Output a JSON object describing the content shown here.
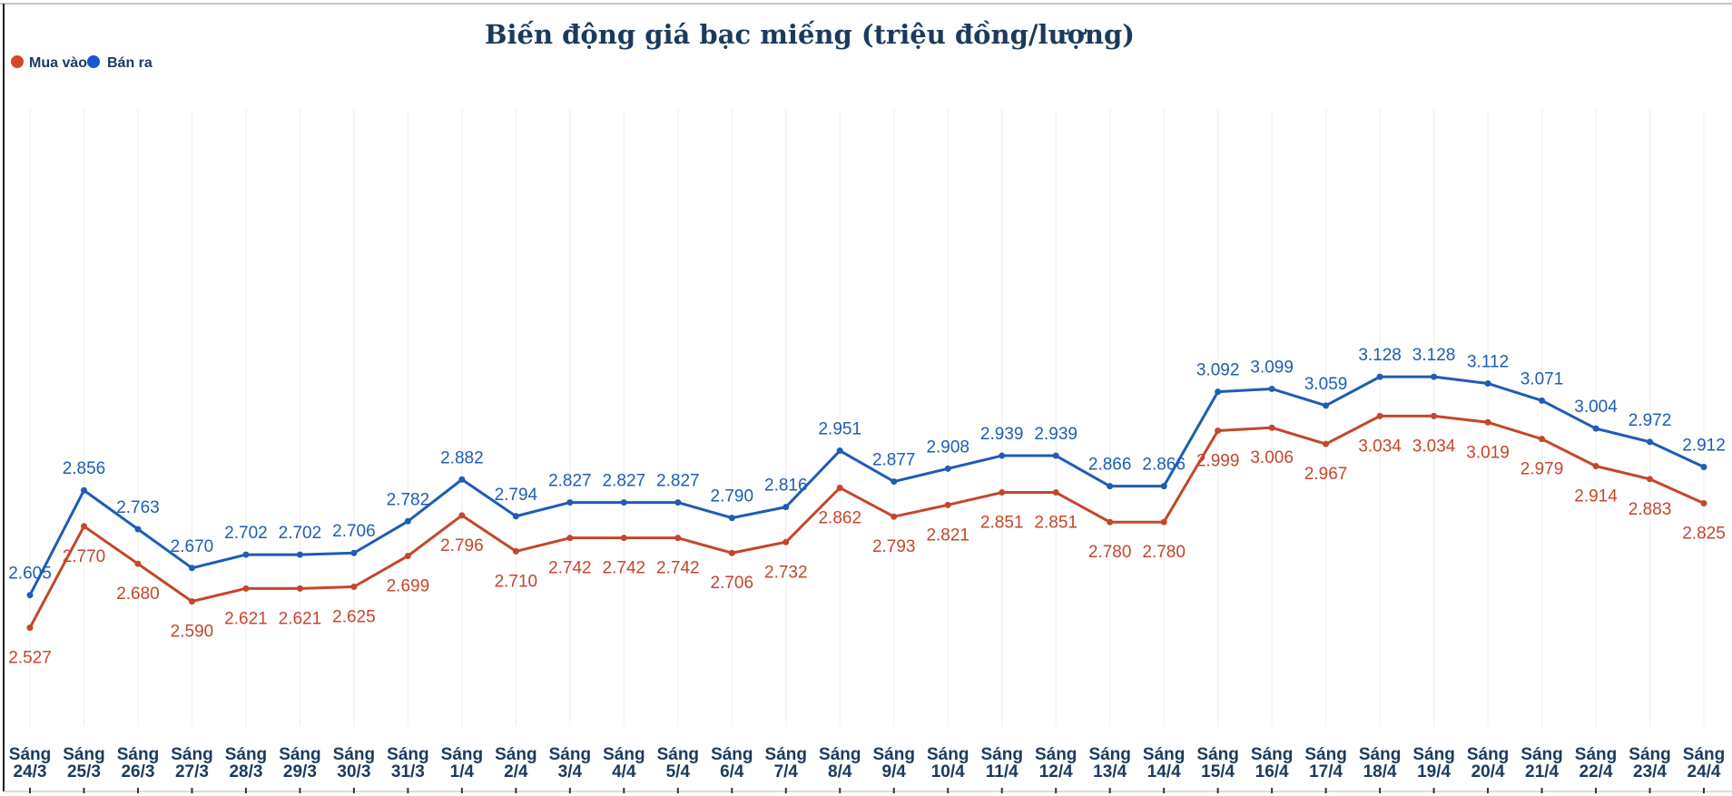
{
  "chart_data": {
    "type": "line",
    "title": "Biến động giá bạc miếng (triệu đồng/lượng)",
    "xlabel": "",
    "ylabel": "",
    "ylim": [
      2.15,
      3.9
    ],
    "grid": "vertical",
    "legend_position": "top-left",
    "categories": [
      [
        "Sáng",
        "24/3"
      ],
      [
        "Sáng",
        "25/3"
      ],
      [
        "Sáng",
        "26/3"
      ],
      [
        "Sáng",
        "27/3"
      ],
      [
        "Sáng",
        "28/3"
      ],
      [
        "Sáng",
        "29/3"
      ],
      [
        "Sáng",
        "30/3"
      ],
      [
        "Sáng",
        "31/3"
      ],
      [
        "Sáng",
        "1/4"
      ],
      [
        "Sáng",
        "2/4"
      ],
      [
        "Sáng",
        "3/4"
      ],
      [
        "Sáng",
        "4/4"
      ],
      [
        "Sáng",
        "5/4"
      ],
      [
        "Sáng",
        "6/4"
      ],
      [
        "Sáng",
        "7/4"
      ],
      [
        "Sáng",
        "8/4"
      ],
      [
        "Sáng",
        "9/4"
      ],
      [
        "Sáng",
        "10/4"
      ],
      [
        "Sáng",
        "11/4"
      ],
      [
        "Sáng",
        "12/4"
      ],
      [
        "Sáng",
        "13/4"
      ],
      [
        "Sáng",
        "14/4"
      ],
      [
        "Sáng",
        "15/4"
      ],
      [
        "Sáng",
        "16/4"
      ],
      [
        "Sáng",
        "17/4"
      ],
      [
        "Sáng",
        "18/4"
      ],
      [
        "Sáng",
        "19/4"
      ],
      [
        "Sáng",
        "20/4"
      ],
      [
        "Sáng",
        "21/4"
      ],
      [
        "Sáng",
        "22/4"
      ],
      [
        "Sáng",
        "23/4"
      ],
      [
        "Sáng",
        "24/4"
      ]
    ],
    "series": [
      {
        "name": "Mua vào",
        "color": "#c4462b",
        "label_position": "below",
        "values": [
          2.527,
          2.77,
          2.68,
          2.59,
          2.621,
          2.621,
          2.625,
          2.699,
          2.796,
          2.71,
          2.742,
          2.742,
          2.742,
          2.706,
          2.732,
          2.862,
          2.793,
          2.821,
          2.851,
          2.851,
          2.78,
          2.78,
          2.999,
          3.006,
          2.967,
          3.034,
          3.034,
          3.019,
          2.979,
          2.914,
          2.883,
          2.825
        ],
        "labels": [
          "2.527",
          "2.770",
          "2.680",
          "2.590",
          "2.621",
          "2.621",
          "2.625",
          "2.699",
          "2.796",
          "2.710",
          "2.742",
          "2.742",
          "2.742",
          "2.706",
          "2.732",
          "2.862",
          "2.793",
          "2.821",
          "2.851",
          "2.851",
          "2.780",
          "2.780",
          "2.999",
          "3.006",
          "2.967",
          "3.034",
          "3.034",
          "3.019",
          "2.979",
          "2.914",
          "2.883",
          "2.825"
        ]
      },
      {
        "name": "Bán ra",
        "color": "#1f5cb3",
        "label_position": "above",
        "values": [
          2.605,
          2.856,
          2.763,
          2.67,
          2.702,
          2.702,
          2.706,
          2.782,
          2.882,
          2.794,
          2.827,
          2.827,
          2.827,
          2.79,
          2.816,
          2.951,
          2.877,
          2.908,
          2.939,
          2.939,
          2.866,
          2.866,
          3.092,
          3.099,
          3.059,
          3.128,
          3.128,
          3.112,
          3.071,
          3.004,
          2.972,
          2.912
        ],
        "labels": [
          "2.605",
          "2.856",
          "2.763",
          "2.670",
          "2.702",
          "2.702",
          "2.706",
          "2.782",
          "2.882",
          "2.794",
          "2.827",
          "2.827",
          "2.827",
          "2.790",
          "2.816",
          "2.951",
          "2.877",
          "2.908",
          "2.939",
          "2.939",
          "2.866",
          "2.866",
          "3.092",
          "3.099",
          "3.059",
          "3.128",
          "3.128",
          "3.112",
          "3.071",
          "3.004",
          "2.972",
          "2.912"
        ]
      }
    ]
  }
}
